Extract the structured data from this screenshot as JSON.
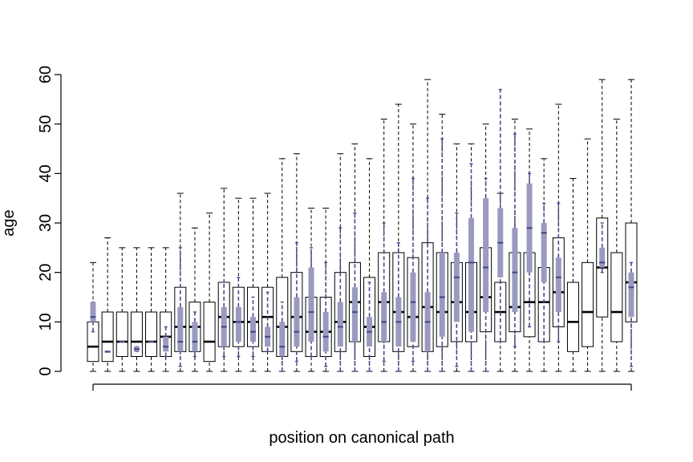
{
  "chart_data": {
    "type": "boxplot",
    "xlabel": "position on canonical path",
    "ylabel": "age",
    "ylim": [
      0,
      60
    ],
    "y_ticks": [
      0,
      10,
      20,
      30,
      40,
      50,
      60
    ],
    "colors": {
      "outline_box": "#000000",
      "overlay_box": "#9a9ac0",
      "overlay_whisker": "#4a4a8a"
    },
    "series": [
      {
        "style": "outline",
        "boxes": [
          {
            "min": 0,
            "q1": 2,
            "median": 5,
            "q3": 10,
            "max": 22
          },
          {
            "min": 0,
            "q1": 2,
            "median": 6,
            "q3": 12,
            "max": 27
          },
          {
            "min": 0,
            "q1": 3,
            "median": 6,
            "q3": 12,
            "max": 25
          },
          {
            "min": 0,
            "q1": 3,
            "median": 6,
            "q3": 12,
            "max": 25
          },
          {
            "min": 0,
            "q1": 3,
            "median": 6,
            "q3": 12,
            "max": 25
          },
          {
            "min": 0,
            "q1": 3,
            "median": 7,
            "q3": 12,
            "max": 25
          },
          {
            "min": 0,
            "q1": 4,
            "median": 9,
            "q3": 17,
            "max": 36
          },
          {
            "min": 0,
            "q1": 4,
            "median": 9,
            "q3": 14,
            "max": 29
          },
          {
            "min": 0,
            "q1": 2,
            "median": 6,
            "q3": 14,
            "max": 32
          },
          {
            "min": 0,
            "q1": 5,
            "median": 11,
            "q3": 18,
            "max": 37
          },
          {
            "min": 0,
            "q1": 5,
            "median": 10,
            "q3": 17,
            "max": 35
          },
          {
            "min": 0,
            "q1": 5,
            "median": 10,
            "q3": 17,
            "max": 35
          },
          {
            "min": 0,
            "q1": 4,
            "median": 11,
            "q3": 17,
            "max": 36
          },
          {
            "min": 0,
            "q1": 3,
            "median": 9,
            "q3": 19,
            "max": 43
          },
          {
            "min": 0,
            "q1": 4,
            "median": 11,
            "q3": 20,
            "max": 44
          },
          {
            "min": 0,
            "q1": 3,
            "median": 8,
            "q3": 15,
            "max": 33
          },
          {
            "min": 0,
            "q1": 3,
            "median": 8,
            "q3": 15,
            "max": 33
          },
          {
            "min": 0,
            "q1": 4,
            "median": 10,
            "q3": 20,
            "max": 44
          },
          {
            "min": 0,
            "q1": 6,
            "median": 14,
            "q3": 22,
            "max": 46
          },
          {
            "min": 0,
            "q1": 3,
            "median": 9,
            "q3": 19,
            "max": 43
          },
          {
            "min": 0,
            "q1": 6,
            "median": 14,
            "q3": 24,
            "max": 51
          },
          {
            "min": 0,
            "q1": 4,
            "median": 12,
            "q3": 24,
            "max": 54
          },
          {
            "min": 0,
            "q1": 5,
            "median": 11,
            "q3": 23,
            "max": 50
          },
          {
            "min": 0,
            "q1": 4,
            "median": 13,
            "q3": 26,
            "max": 59
          },
          {
            "min": 0,
            "q1": 5,
            "median": 12,
            "q3": 24,
            "max": 52
          },
          {
            "min": 0,
            "q1": 6,
            "median": 14,
            "q3": 22,
            "max": 46
          },
          {
            "min": 0,
            "q1": 6,
            "median": 12,
            "q3": 22,
            "max": 46
          },
          {
            "min": 0,
            "q1": 8,
            "median": 15,
            "q3": 25,
            "max": 50
          },
          {
            "min": 0,
            "q1": 6,
            "median": 12,
            "q3": 18,
            "max": 36
          },
          {
            "min": 0,
            "q1": 8,
            "median": 13,
            "q3": 24,
            "max": 51
          },
          {
            "min": 0,
            "q1": 7,
            "median": 14,
            "q3": 24,
            "max": 49
          },
          {
            "min": 0,
            "q1": 6,
            "median": 14,
            "q3": 21,
            "max": 43
          },
          {
            "min": 0,
            "q1": 9,
            "median": 16,
            "q3": 27,
            "max": 54
          },
          {
            "min": 0,
            "q1": 4,
            "median": 10,
            "q3": 18,
            "max": 39
          },
          {
            "min": 0,
            "q1": 5,
            "median": 12,
            "q3": 22,
            "max": 47
          },
          {
            "min": 0,
            "q1": 11,
            "median": 21,
            "q3": 31,
            "max": 59
          },
          {
            "min": 0,
            "q1": 6,
            "median": 12,
            "q3": 24,
            "max": 51
          },
          {
            "min": 0,
            "q1": 10,
            "median": 18,
            "q3": 30,
            "max": 59
          }
        ]
      },
      {
        "style": "overlay",
        "boxes": [
          {
            "min": 8,
            "q1": 10,
            "median": 11,
            "q3": 14,
            "max": 14
          },
          {
            "min": 4,
            "q1": 4,
            "median": 4,
            "q3": 4,
            "max": 4
          },
          {
            "min": 6,
            "q1": 6,
            "median": 6,
            "q3": 6,
            "max": 6
          },
          {
            "min": 4,
            "q1": 4,
            "median": 4.5,
            "q3": 5,
            "max": 5
          },
          {
            "min": 6,
            "q1": 6,
            "median": 6,
            "q3": 6,
            "max": 6
          },
          {
            "min": 3,
            "q1": 4,
            "median": 5,
            "q3": 7,
            "max": 9
          },
          {
            "min": 1,
            "q1": 4,
            "median": 6,
            "q3": 13,
            "max": 25
          },
          {
            "min": 3,
            "q1": 4,
            "median": 6,
            "q3": 10,
            "max": 12
          },
          null,
          {
            "min": 3,
            "q1": 5,
            "median": 9,
            "q3": 13,
            "max": 18
          },
          {
            "min": 3,
            "q1": 6,
            "median": 10,
            "q3": 13,
            "max": 19
          },
          {
            "min": 3,
            "q1": 6,
            "median": 8,
            "q3": 11,
            "max": 15
          },
          {
            "min": 4,
            "q1": 5,
            "median": 7,
            "q3": 9,
            "max": 16
          },
          {
            "min": 0,
            "q1": 3,
            "median": 5,
            "q3": 10,
            "max": 14
          },
          {
            "min": 2,
            "q1": 5,
            "median": 8,
            "q3": 15,
            "max": 26
          },
          {
            "min": 3,
            "q1": 6,
            "median": 12,
            "q3": 21,
            "max": 25
          },
          {
            "min": 1,
            "q1": 4,
            "median": 7,
            "q3": 12,
            "max": 22
          },
          {
            "min": 0,
            "q1": 5,
            "median": 9,
            "q3": 14,
            "max": 29
          },
          {
            "min": 0,
            "q1": 6,
            "median": 12,
            "q3": 17,
            "max": 32
          },
          {
            "min": 0,
            "q1": 5,
            "median": 8,
            "q3": 11,
            "max": 18
          },
          {
            "min": 2,
            "q1": 6,
            "median": 10,
            "q3": 16,
            "max": 30
          },
          {
            "min": 0,
            "q1": 5,
            "median": 10,
            "q3": 15,
            "max": 26
          },
          {
            "min": 2,
            "q1": 6,
            "median": 14,
            "q3": 20,
            "max": 39
          },
          {
            "min": 0,
            "q1": 4,
            "median": 10,
            "q3": 16,
            "max": 35
          },
          {
            "min": 0,
            "q1": 7,
            "median": 15,
            "q3": 24,
            "max": 47
          },
          {
            "min": 1,
            "q1": 10,
            "median": 19,
            "q3": 24,
            "max": 32
          },
          {
            "min": 0,
            "q1": 8,
            "median": 22,
            "q3": 31,
            "max": 42
          },
          {
            "min": 0,
            "q1": 12,
            "median": 21,
            "q3": 35,
            "max": 39
          },
          {
            "min": 6,
            "q1": 19,
            "median": 26,
            "q3": 33,
            "max": 57
          },
          {
            "min": 5,
            "q1": 12,
            "median": 20,
            "q3": 29,
            "max": 48
          },
          {
            "min": 9,
            "q1": 20,
            "median": 29,
            "q3": 38,
            "max": 40
          },
          {
            "min": 6,
            "q1": 18,
            "median": 28,
            "q3": 30,
            "max": 34
          },
          {
            "min": 6,
            "q1": 12,
            "median": 19,
            "q3": 23,
            "max": 34
          },
          null,
          null,
          {
            "min": 20,
            "q1": 21,
            "median": 22,
            "q3": 25,
            "max": 30
          },
          null,
          {
            "min": 1,
            "q1": 11,
            "median": 17,
            "q3": 20,
            "max": 22
          }
        ]
      }
    ]
  }
}
